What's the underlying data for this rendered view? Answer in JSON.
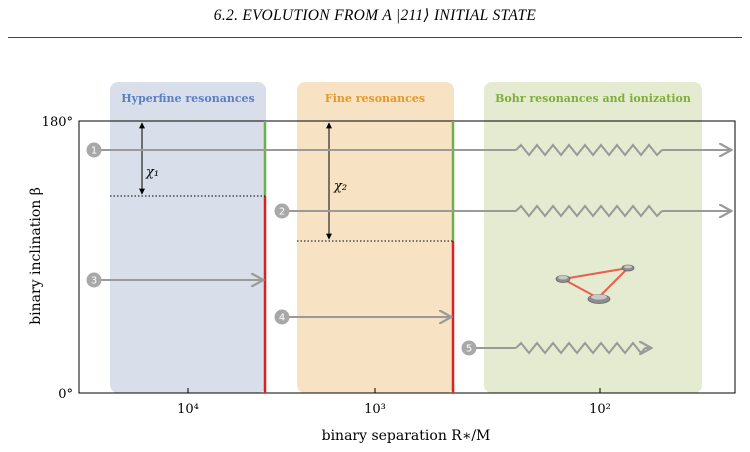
{
  "page_header": "6.2.  EVOLUTION FROM A |211⟩ INITIAL STATE",
  "chart_data": {
    "type": "diagram",
    "xlabel": "binary separation R∗/M",
    "ylabel": "binary inclination β",
    "y_ticks": [
      "180°",
      "0°"
    ],
    "x_ticks": [
      "10⁴",
      "10³",
      "10²"
    ],
    "regions": [
      {
        "label": "Hyperfine resonances",
        "color": "#5b7fc2"
      },
      {
        "label": "Fine resonances",
        "color": "#e39a2b"
      },
      {
        "label": "Bohr resonances and ionization",
        "color": "#7fae3a"
      }
    ],
    "angle_labels": [
      "χ₁",
      "χ₂"
    ],
    "trajectories": [
      "1",
      "2",
      "3",
      "4",
      "5"
    ],
    "colors": {
      "hyperfine_bg": "#d8dfea",
      "fine_bg": "#f7e2c3",
      "bohr_bg": "#e4ebd0",
      "arrow": "#9a9a9a",
      "green_edge": "#6ab04c",
      "red_edge": "#e02020",
      "badge": "#a8a8a8"
    }
  }
}
